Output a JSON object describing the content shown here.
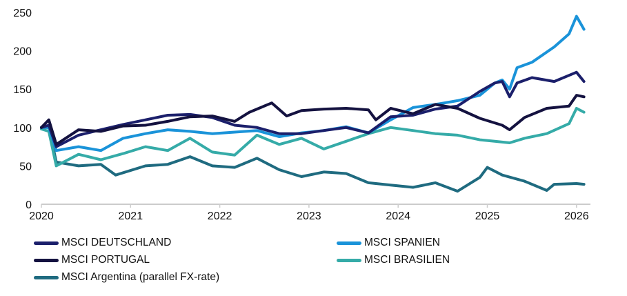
{
  "chart_data": {
    "type": "line",
    "title": "",
    "xlabel": "",
    "ylabel": "",
    "ylim": [
      0,
      250
    ],
    "yticks": [
      "0",
      "50",
      "100",
      "150",
      "200",
      "250"
    ],
    "xlim": [
      "2020-01",
      "2026-02"
    ],
    "xticks": [
      "2020",
      "2021",
      "2022",
      "2023",
      "2024",
      "2025",
      "2026"
    ],
    "grid": false,
    "legend_position": "bottom",
    "series": [
      {
        "name": "MSCI DEUTSCHLAND",
        "color": "#1b1f6b",
        "x": [
          "2020-01",
          "2020-02",
          "2020-03",
          "2020-06",
          "2020-09",
          "2020-12",
          "2021-03",
          "2021-06",
          "2021-09",
          "2021-12",
          "2022-03",
          "2022-06",
          "2022-09",
          "2022-12",
          "2023-03",
          "2023-06",
          "2023-09",
          "2023-12",
          "2024-03",
          "2024-06",
          "2024-09",
          "2024-12",
          "2025-02",
          "2025-03",
          "2025-04",
          "2025-05",
          "2025-07",
          "2025-10",
          "2025-12",
          "2026-01",
          "2026-02"
        ],
        "y": [
          100,
          103,
          75,
          90,
          97,
          104,
          110,
          116,
          117,
          113,
          103,
          100,
          92,
          92,
          96,
          100,
          93,
          114,
          116,
          124,
          128,
          147,
          158,
          160,
          140,
          158,
          165,
          160,
          168,
          172,
          160
        ]
      },
      {
        "name": "MSCI SPANIEN",
        "color": "#1a93d9",
        "x": [
          "2020-01",
          "2020-02",
          "2020-03",
          "2020-06",
          "2020-09",
          "2020-12",
          "2021-03",
          "2021-06",
          "2021-09",
          "2021-12",
          "2022-03",
          "2022-06",
          "2022-09",
          "2022-12",
          "2023-03",
          "2023-06",
          "2023-09",
          "2023-12",
          "2024-03",
          "2024-06",
          "2024-09",
          "2024-12",
          "2025-02",
          "2025-03",
          "2025-04",
          "2025-05",
          "2025-07",
          "2025-10",
          "2025-12",
          "2026-01",
          "2026-02"
        ],
        "y": [
          100,
          100,
          70,
          75,
          70,
          86,
          92,
          97,
          95,
          92,
          94,
          96,
          88,
          93,
          96,
          101,
          93,
          110,
          126,
          130,
          135,
          142,
          158,
          162,
          150,
          178,
          185,
          205,
          222,
          245,
          228
        ]
      },
      {
        "name": "MSCI PORTUGAL",
        "color": "#141240",
        "x": [
          "2020-01",
          "2020-02",
          "2020-03",
          "2020-06",
          "2020-09",
          "2020-12",
          "2021-03",
          "2021-06",
          "2021-09",
          "2021-12",
          "2022-03",
          "2022-05",
          "2022-08",
          "2022-10",
          "2022-12",
          "2023-03",
          "2023-06",
          "2023-09",
          "2023-10",
          "2023-12",
          "2024-03",
          "2024-06",
          "2024-09",
          "2024-12",
          "2025-03",
          "2025-04",
          "2025-06",
          "2025-09",
          "2025-12",
          "2026-01",
          "2026-02"
        ],
        "y": [
          100,
          110,
          78,
          97,
          95,
          102,
          103,
          108,
          114,
          115,
          108,
          120,
          132,
          115,
          122,
          124,
          125,
          123,
          110,
          125,
          118,
          130,
          125,
          112,
          103,
          97,
          113,
          125,
          128,
          142,
          140
        ]
      },
      {
        "name": "MSCI BRASILIEN",
        "color": "#35aba8",
        "x": [
          "2020-01",
          "2020-02",
          "2020-03",
          "2020-06",
          "2020-09",
          "2020-12",
          "2021-03",
          "2021-06",
          "2021-09",
          "2021-12",
          "2022-03",
          "2022-06",
          "2022-09",
          "2022-12",
          "2023-03",
          "2023-06",
          "2023-09",
          "2023-12",
          "2024-03",
          "2024-06",
          "2024-09",
          "2024-12",
          "2025-02",
          "2025-04",
          "2025-06",
          "2025-09",
          "2025-12",
          "2026-01",
          "2026-02"
        ],
        "y": [
          98,
          95,
          50,
          65,
          58,
          66,
          75,
          70,
          86,
          68,
          64,
          90,
          78,
          86,
          72,
          82,
          92,
          100,
          96,
          92,
          90,
          84,
          82,
          80,
          86,
          92,
          105,
          125,
          120
        ]
      },
      {
        "name": "MSCI Argentina (parallel FX-rate)",
        "color": "#1f6b80",
        "x": [
          "2020-01",
          "2020-02",
          "2020-03",
          "2020-06",
          "2020-09",
          "2020-11",
          "2021-03",
          "2021-06",
          "2021-09",
          "2021-12",
          "2022-03",
          "2022-06",
          "2022-09",
          "2022-12",
          "2023-03",
          "2023-06",
          "2023-09",
          "2023-12",
          "2024-03",
          "2024-06",
          "2024-09",
          "2024-12",
          "2025-01",
          "2025-03",
          "2025-06",
          "2025-09",
          "2025-10",
          "2026-01",
          "2026-02"
        ],
        "y": [
          100,
          100,
          55,
          50,
          52,
          38,
          50,
          52,
          62,
          50,
          48,
          60,
          45,
          36,
          42,
          40,
          28,
          25,
          22,
          28,
          17,
          35,
          48,
          38,
          30,
          18,
          26,
          27,
          26
        ]
      }
    ]
  }
}
